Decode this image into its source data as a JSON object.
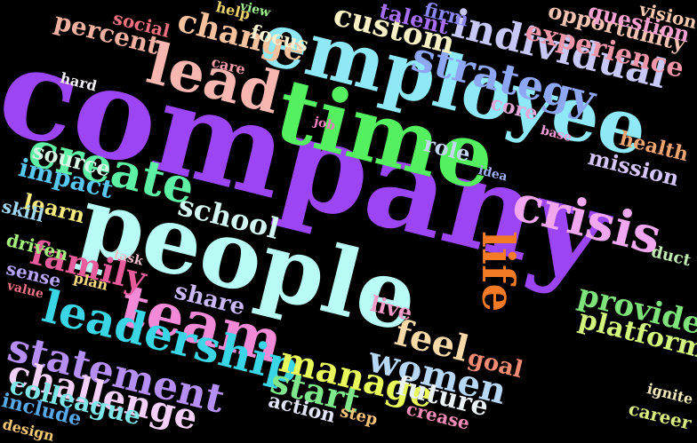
{
  "canvas": {
    "background": "#000000"
  },
  "words": [
    {
      "text": "company",
      "color": "#9b45f5",
      "weight": 1.0
    },
    {
      "text": "people",
      "color": "#b8fbf4",
      "weight": 0.58
    },
    {
      "text": "time",
      "color": "#55f060",
      "weight": 0.56
    },
    {
      "text": "employee",
      "color": "#8ee8f5",
      "weight": 0.5
    },
    {
      "text": "team",
      "color": "#f38ad8",
      "weight": 0.42
    },
    {
      "text": "lead",
      "color": "#f7b6b0",
      "weight": 0.38
    },
    {
      "text": "leadership",
      "color": "#3ad6e6",
      "weight": 0.33
    },
    {
      "text": "create",
      "color": "#5ef0a4",
      "weight": 0.32
    },
    {
      "text": "strategy",
      "color": "#8ea7f3",
      "weight": 0.32
    },
    {
      "text": "crisis",
      "color": "#f1a7f0",
      "weight": 0.31
    },
    {
      "text": "individual",
      "color": "#c7c8f7",
      "weight": 0.29
    },
    {
      "text": "statement",
      "color": "#b58ff3",
      "weight": 0.27
    },
    {
      "text": "life",
      "color": "#f57a26",
      "weight": 0.27
    },
    {
      "text": "manage",
      "color": "#e8f95c",
      "weight": 0.26
    },
    {
      "text": "challenge",
      "color": "#f3d0f7",
      "weight": 0.26
    },
    {
      "text": "women",
      "color": "#b6d8f5",
      "weight": 0.24
    },
    {
      "text": "feel",
      "color": "#f9d9a8",
      "weight": 0.24
    },
    {
      "text": "custom",
      "color": "#f7f0c4",
      "weight": 0.23
    },
    {
      "text": "change",
      "color": "#f6c19d",
      "weight": 0.22
    },
    {
      "text": "family",
      "color": "#e85c9c",
      "weight": 0.22
    },
    {
      "text": "school",
      "color": "#d2f7f0",
      "weight": 0.21
    },
    {
      "text": "start",
      "color": "#7fe88a",
      "weight": 0.21
    },
    {
      "text": "experience",
      "color": "#ee95a8",
      "weight": 0.2
    },
    {
      "text": "provide",
      "color": "#7ee37a",
      "weight": 0.2
    },
    {
      "text": "platform",
      "color": "#d4f57d",
      "weight": 0.19
    },
    {
      "text": "colleague",
      "color": "#7fe6e8",
      "weight": 0.19
    },
    {
      "text": "future",
      "color": "#eaf2f5",
      "weight": 0.18
    },
    {
      "text": "mission",
      "color": "#d5c4f7",
      "weight": 0.18
    },
    {
      "text": "opportunity",
      "color": "#f3c2b0",
      "weight": 0.17
    },
    {
      "text": "question",
      "color": "#f39fd0",
      "weight": 0.17
    },
    {
      "text": "impact",
      "color": "#58c8f0",
      "weight": 0.17
    },
    {
      "text": "share",
      "color": "#c9b8f5",
      "weight": 0.17
    },
    {
      "text": "percent",
      "color": "#f1b0a0",
      "weight": 0.16
    },
    {
      "text": "talent",
      "color": "#a76ef5",
      "weight": 0.16
    },
    {
      "text": "goal",
      "color": "#f28b72",
      "weight": 0.16
    },
    {
      "text": "role",
      "color": "#c3d7f5",
      "weight": 0.15
    },
    {
      "text": "source",
      "color": "#d7f7e6",
      "weight": 0.15
    },
    {
      "text": "health",
      "color": "#f0a46f",
      "weight": 0.15
    },
    {
      "text": "core",
      "color": "#e6a7d9",
      "weight": 0.14
    },
    {
      "text": "include",
      "color": "#57a8e6",
      "weight": 0.14
    },
    {
      "text": "focus",
      "color": "#f4f1d2",
      "weight": 0.14
    },
    {
      "text": "learn",
      "color": "#f5e87d",
      "weight": 0.14
    },
    {
      "text": "action",
      "color": "#e0e4f5",
      "weight": 0.13
    },
    {
      "text": "live",
      "color": "#f59ac7",
      "weight": 0.13
    },
    {
      "text": "vision",
      "color": "#f6c9ae",
      "weight": 0.12
    },
    {
      "text": "firm",
      "color": "#8a86f5",
      "weight": 0.12
    },
    {
      "text": "social",
      "color": "#ef6f7e",
      "weight": 0.12
    },
    {
      "text": "crease",
      "color": "#f08cb7",
      "weight": 0.12
    },
    {
      "text": "driven",
      "color": "#a4f07a",
      "weight": 0.11
    },
    {
      "text": "sense",
      "color": "#b7a3f7",
      "weight": 0.11
    },
    {
      "text": "skill",
      "color": "#a1d8f5",
      "weight": 0.11
    },
    {
      "text": "career",
      "color": "#d9ea80",
      "weight": 0.11
    },
    {
      "text": "duct",
      "color": "#c2ecb5",
      "weight": 0.1
    },
    {
      "text": "ignite",
      "color": "#f0e8b8",
      "weight": 0.1
    },
    {
      "text": "care",
      "color": "#f39ca6",
      "weight": 0.1
    },
    {
      "text": "step",
      "color": "#f5c177",
      "weight": 0.1
    },
    {
      "text": "design",
      "color": "#f3c872",
      "weight": 0.09
    },
    {
      "text": "help",
      "color": "#ecd06a",
      "weight": 0.09
    },
    {
      "text": "hard",
      "color": "#f2eef5",
      "weight": 0.09
    },
    {
      "text": "plan",
      "color": "#f7d87e",
      "weight": 0.09
    },
    {
      "text": "view",
      "color": "#9ff08f",
      "weight": 0.08
    },
    {
      "text": "base",
      "color": "#f39cd7",
      "weight": 0.08
    },
    {
      "text": "value",
      "color": "#f06e86",
      "weight": 0.08
    },
    {
      "text": "task",
      "color": "#f2c0cd",
      "weight": 0.08
    },
    {
      "text": "job",
      "color": "#f47fc0",
      "weight": 0.08
    },
    {
      "text": "idea",
      "color": "#9fb0f5",
      "weight": 0.07
    }
  ]
}
